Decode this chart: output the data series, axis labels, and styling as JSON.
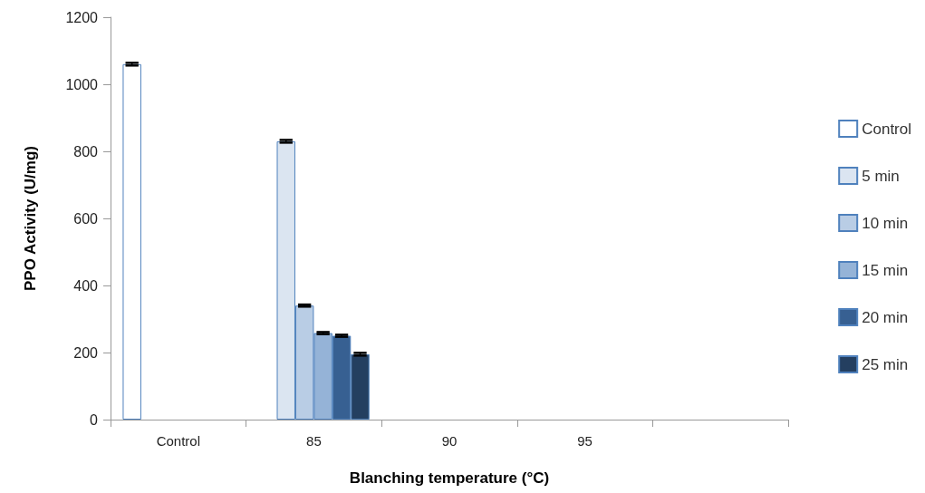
{
  "chart_data": {
    "type": "bar",
    "xlabel": "Blanching temperature (°C)",
    "ylabel": "PPO Activity (U/mg)",
    "categories": [
      "Control",
      "85",
      "90",
      "95",
      null
    ],
    "series": [
      {
        "name": "Control",
        "color": "#ffffff",
        "values": [
          1060,
          null,
          null,
          null,
          null
        ],
        "errors": [
          4,
          null,
          null,
          null,
          null
        ]
      },
      {
        "name": "5 min",
        "color": "#dbe5f1",
        "values": [
          null,
          830,
          null,
          null,
          null
        ],
        "errors": [
          null,
          4,
          null,
          null,
          null
        ]
      },
      {
        "name": "10 min",
        "color": "#b9cde5",
        "values": [
          null,
          340,
          null,
          null,
          null
        ],
        "errors": [
          null,
          3,
          null,
          null,
          null
        ]
      },
      {
        "name": "15 min",
        "color": "#95b3d7",
        "values": [
          null,
          258,
          null,
          null,
          null
        ],
        "errors": [
          null,
          3,
          null,
          null,
          null
        ]
      },
      {
        "name": "20 min",
        "color": "#376092",
        "values": [
          null,
          250,
          null,
          null,
          null
        ],
        "errors": [
          null,
          3,
          null,
          null,
          null
        ]
      },
      {
        "name": "25 min",
        "color": "#243f60",
        "values": [
          null,
          195,
          null,
          null,
          null
        ],
        "errors": [
          null,
          4,
          null,
          null,
          null
        ]
      }
    ],
    "ylim": [
      0,
      1200
    ],
    "yticks": [
      0,
      200,
      400,
      600,
      800,
      1000,
      1200
    ],
    "grid": false,
    "legend": "right"
  }
}
